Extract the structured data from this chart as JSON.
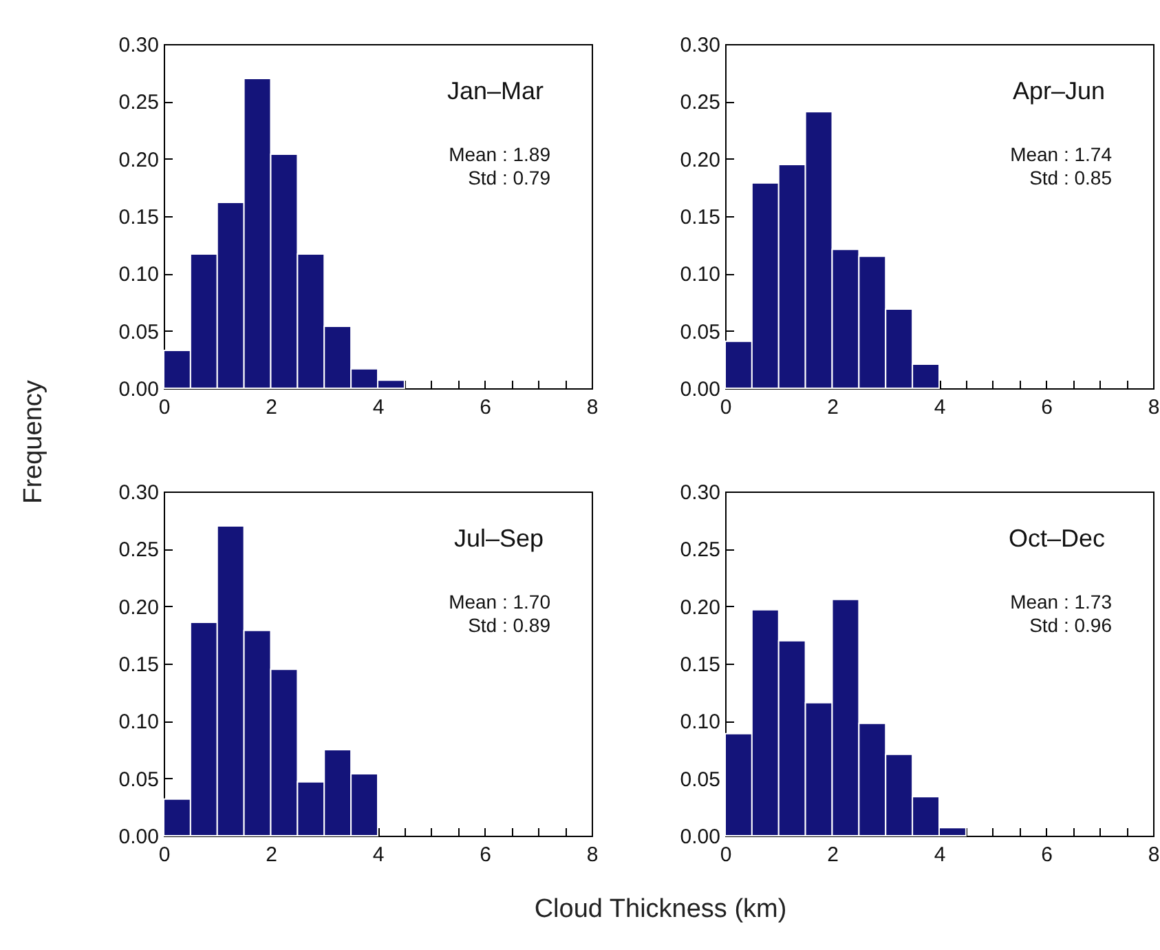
{
  "chart_data": [
    {
      "type": "histogram",
      "ylabel": "Frequency",
      "bins": [
        0,
        0.5,
        1,
        1.5,
        2,
        2.5,
        3,
        3.5,
        4,
        4.5
      ],
      "values": [
        0.033,
        0.117,
        0.162,
        0.27,
        0.204,
        0.117,
        0.054,
        0.017,
        0.007
      ],
      "color": "#14147a",
      "xlim": [
        0,
        8
      ],
      "ylim": [
        0,
        0.3
      ],
      "xticks": [
        0,
        {
          "value": 0.5,
          "label": null
        },
        {
          "value": 1,
          "label": null
        },
        {
          "value": 1.5,
          "label": null
        },
        2,
        {
          "value": 2.5,
          "label": null
        },
        {
          "value": 3,
          "label": null
        },
        {
          "value": 3.5,
          "label": null
        },
        4,
        {
          "value": 4.5,
          "label": null
        },
        {
          "value": 5,
          "label": null
        },
        {
          "value": 5.5,
          "label": null
        },
        6,
        {
          "value": 6.5,
          "label": null
        },
        {
          "value": 7,
          "label": null
        },
        {
          "value": 7.5,
          "label": null
        },
        8
      ],
      "yticks": [
        {
          "value": 0,
          "label": "0.00"
        },
        {
          "value": 0.05,
          "label": "0.05"
        },
        {
          "value": 0.1,
          "label": "0.10"
        },
        {
          "value": 0.15,
          "label": "0.15"
        },
        {
          "value": 0.2,
          "label": "0.20"
        },
        {
          "value": 0.25,
          "label": "0.25"
        },
        {
          "value": 0.3,
          "label": "0.30"
        }
      ],
      "annotations": [
        "Jan–Mar",
        "Mean :  1.89",
        "Std :  0.79"
      ]
    },
    {
      "type": "histogram",
      "bins": [
        0,
        0.5,
        1,
        1.5,
        2,
        2.5,
        3,
        3.5,
        4
      ],
      "values": [
        0.041,
        0.179,
        0.195,
        0.241,
        0.121,
        0.115,
        0.069,
        0.021
      ],
      "color": "#14147a",
      "xlim": [
        0,
        8
      ],
      "ylim": [
        0,
        0.3
      ],
      "xticks": [
        0,
        {
          "value": 0.5,
          "label": null
        },
        {
          "value": 1,
          "label": null
        },
        {
          "value": 1.5,
          "label": null
        },
        2,
        {
          "value": 2.5,
          "label": null
        },
        {
          "value": 3,
          "label": null
        },
        {
          "value": 3.5,
          "label": null
        },
        4,
        {
          "value": 4.5,
          "label": null
        },
        {
          "value": 5,
          "label": null
        },
        {
          "value": 5.5,
          "label": null
        },
        6,
        {
          "value": 6.5,
          "label": null
        },
        {
          "value": 7,
          "label": null
        },
        {
          "value": 7.5,
          "label": null
        },
        8
      ],
      "yticks": [
        {
          "value": 0,
          "label": "0.00"
        },
        {
          "value": 0.05,
          "label": "0.05"
        },
        {
          "value": 0.1,
          "label": "0.10"
        },
        {
          "value": 0.15,
          "label": "0.15"
        },
        {
          "value": 0.2,
          "label": "0.20"
        },
        {
          "value": 0.25,
          "label": "0.25"
        },
        {
          "value": 0.3,
          "label": "0.30"
        }
      ],
      "annotations": [
        "Apr–Jun",
        "Mean :  1.74",
        "Std :  0.85"
      ]
    },
    {
      "type": "histogram",
      "xlabel": "Cloud Thickness (km)",
      "bins": [
        0,
        0.5,
        1,
        1.5,
        2,
        2.5,
        3,
        3.5,
        4
      ],
      "values": [
        0.032,
        0.186,
        0.27,
        0.179,
        0.145,
        0.047,
        0.075,
        0.054
      ],
      "color": "#14147a",
      "xlim": [
        0,
        8
      ],
      "ylim": [
        0,
        0.3
      ],
      "xticks": [
        0,
        {
          "value": 0.5,
          "label": null
        },
        {
          "value": 1,
          "label": null
        },
        {
          "value": 1.5,
          "label": null
        },
        2,
        {
          "value": 2.5,
          "label": null
        },
        {
          "value": 3,
          "label": null
        },
        {
          "value": 3.5,
          "label": null
        },
        4,
        {
          "value": 4.5,
          "label": null
        },
        {
          "value": 5,
          "label": null
        },
        {
          "value": 5.5,
          "label": null
        },
        6,
        {
          "value": 6.5,
          "label": null
        },
        {
          "value": 7,
          "label": null
        },
        {
          "value": 7.5,
          "label": null
        },
        8
      ],
      "yticks": [
        {
          "value": 0,
          "label": "0.00"
        },
        {
          "value": 0.05,
          "label": "0.05"
        },
        {
          "value": 0.1,
          "label": "0.10"
        },
        {
          "value": 0.15,
          "label": "0.15"
        },
        {
          "value": 0.2,
          "label": "0.20"
        },
        {
          "value": 0.25,
          "label": "0.25"
        },
        {
          "value": 0.3,
          "label": "0.30"
        }
      ],
      "annotations": [
        "Jul–Sep",
        "Mean :  1.70",
        "Std :  0.89"
      ]
    },
    {
      "type": "histogram",
      "bins": [
        0,
        0.5,
        1,
        1.5,
        2,
        2.5,
        3,
        3.5,
        4,
        4.5
      ],
      "values": [
        0.089,
        0.197,
        0.17,
        0.116,
        0.206,
        0.098,
        0.071,
        0.034,
        0.007
      ],
      "color": "#14147a",
      "xlim": [
        0,
        8
      ],
      "ylim": [
        0,
        0.3
      ],
      "xticks": [
        0,
        {
          "value": 0.5,
          "label": null
        },
        {
          "value": 1,
          "label": null
        },
        {
          "value": 1.5,
          "label": null
        },
        2,
        {
          "value": 2.5,
          "label": null
        },
        {
          "value": 3,
          "label": null
        },
        {
          "value": 3.5,
          "label": null
        },
        4,
        {
          "value": 4.5,
          "label": null
        },
        {
          "value": 5,
          "label": null
        },
        {
          "value": 5.5,
          "label": null
        },
        6,
        {
          "value": 6.5,
          "label": null
        },
        {
          "value": 7,
          "label": null
        },
        {
          "value": 7.5,
          "label": null
        },
        8
      ],
      "yticks": [
        {
          "value": 0,
          "label": "0.00"
        },
        {
          "value": 0.05,
          "label": "0.05"
        },
        {
          "value": 0.1,
          "label": "0.10"
        },
        {
          "value": 0.15,
          "label": "0.15"
        },
        {
          "value": 0.2,
          "label": "0.20"
        },
        {
          "value": 0.25,
          "label": "0.25"
        },
        {
          "value": 0.3,
          "label": "0.30"
        }
      ],
      "annotations": [
        "Oct–Dec",
        "Mean :  1.73",
        "Std :  0.96"
      ]
    }
  ]
}
